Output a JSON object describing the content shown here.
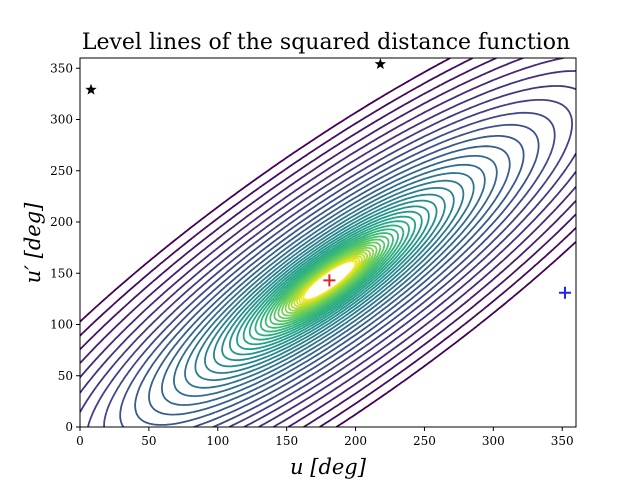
{
  "chart_data": {
    "type": "contour",
    "title": "Level lines of the squared distance function",
    "xlabel": "u [deg]",
    "ylabel": "u′ [deg]",
    "xlim": [
      0,
      360
    ],
    "ylim": [
      0,
      360
    ],
    "x_ticks": [
      0,
      50,
      100,
      150,
      200,
      250,
      300,
      350
    ],
    "y_ticks": [
      0,
      50,
      100,
      150,
      200,
      250,
      300,
      350
    ],
    "grid": false,
    "legend": "none",
    "colormap": "viridis",
    "minimum": {
      "u": 181,
      "u_prime": 143
    },
    "markers": [
      {
        "symbol": "star",
        "color": "#000000",
        "u": 8,
        "u_prime": 329
      },
      {
        "symbol": "star",
        "color": "#000000",
        "u": 218,
        "u_prime": 354
      },
      {
        "symbol": "plus",
        "color": "#d62728",
        "u": 181,
        "u_prime": 143
      },
      {
        "symbol": "plus",
        "color": "#1f1fff",
        "u": 352,
        "u_prime": 131
      }
    ]
  }
}
